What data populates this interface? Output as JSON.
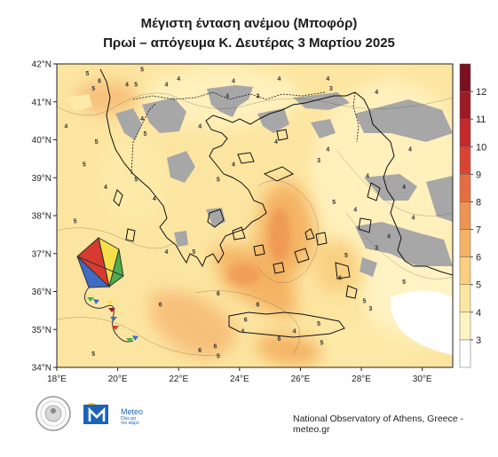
{
  "title": "Μέγιστη ένταση ανέμου (Μποφόρ)",
  "subtitle": "Πρωί – απόγευμα Κ. Δευτέρας 3 Μαρτίου 2025",
  "lat_labels": [
    "42°N",
    "41°N",
    "40°N",
    "39°N",
    "38°N",
    "37°N",
    "36°N",
    "35°N",
    "34°N"
  ],
  "lon_labels": [
    "18°E",
    "20°E",
    "22°E",
    "24°E",
    "26°E",
    "28°E",
    "30°E"
  ],
  "colorbar": {
    "labels": [
      "3",
      "4",
      "5",
      "6",
      "7",
      "8",
      "9",
      "10",
      "11",
      "12"
    ],
    "colors": [
      "#ffffff",
      "#fff3c4",
      "#fce5a0",
      "#f9cf80",
      "#f4b364",
      "#ee9452",
      "#e66d3f",
      "#d94432",
      "#c22a2c",
      "#9e1b26",
      "#7a1020"
    ]
  },
  "contour_labels": [
    {
      "v": "5",
      "lon": 19.0,
      "lat": 41.7
    },
    {
      "v": "5",
      "lon": 20.8,
      "lat": 41.8
    },
    {
      "v": "5",
      "lon": 20.6,
      "lat": 41.4
    },
    {
      "v": "6",
      "lon": 19.4,
      "lat": 41.5
    },
    {
      "v": "5",
      "lon": 19.2,
      "lat": 41.3
    },
    {
      "v": "4",
      "lon": 20.3,
      "lat": 41.4
    },
    {
      "v": "4",
      "lon": 21.6,
      "lat": 41.4
    },
    {
      "v": "4",
      "lon": 22.0,
      "lat": 41.55
    },
    {
      "v": "4",
      "lon": 23.6,
      "lat": 41.1
    },
    {
      "v": "4",
      "lon": 23.8,
      "lat": 41.5
    },
    {
      "v": "4",
      "lon": 25.3,
      "lat": 41.55
    },
    {
      "v": "4",
      "lon": 26.9,
      "lat": 41.55
    },
    {
      "v": "3",
      "lon": 27.0,
      "lat": 41.3
    },
    {
      "v": "3",
      "lon": 24.6,
      "lat": 41.1
    },
    {
      "v": "4",
      "lon": 28.5,
      "lat": 41.2
    },
    {
      "v": "4",
      "lon": 18.3,
      "lat": 40.3
    },
    {
      "v": "5",
      "lon": 19.3,
      "lat": 39.9
    },
    {
      "v": "4",
      "lon": 20.8,
      "lat": 40.5
    },
    {
      "v": "5",
      "lon": 20.9,
      "lat": 40.1
    },
    {
      "v": "4",
      "lon": 22.7,
      "lat": 40.3
    },
    {
      "v": "4",
      "lon": 23.8,
      "lat": 39.3
    },
    {
      "v": "4",
      "lon": 25.2,
      "lat": 39.9
    },
    {
      "v": "3",
      "lon": 26.6,
      "lat": 39.4
    },
    {
      "v": "4",
      "lon": 26.9,
      "lat": 39.7
    },
    {
      "v": "4",
      "lon": 28.2,
      "lat": 39.0
    },
    {
      "v": "4",
      "lon": 29.6,
      "lat": 39.7
    },
    {
      "v": "4",
      "lon": 29.4,
      "lat": 38.7
    },
    {
      "v": "5",
      "lon": 18.9,
      "lat": 39.3
    },
    {
      "v": "5",
      "lon": 20.6,
      "lat": 38.9
    },
    {
      "v": "4",
      "lon": 19.6,
      "lat": 38.7
    },
    {
      "v": "5",
      "lon": 18.6,
      "lat": 37.8
    },
    {
      "v": "4",
      "lon": 21.2,
      "lat": 38.4
    },
    {
      "v": "5",
      "lon": 23.3,
      "lat": 38.9
    },
    {
      "v": "5",
      "lon": 27.1,
      "lat": 38.3
    },
    {
      "v": "4",
      "lon": 27.8,
      "lat": 38.1
    },
    {
      "v": "4",
      "lon": 29.7,
      "lat": 37.9
    },
    {
      "v": "4",
      "lon": 28.9,
      "lat": 37.4
    },
    {
      "v": "3",
      "lon": 28.5,
      "lat": 37.1
    },
    {
      "v": "5",
      "lon": 22.5,
      "lat": 37.0
    },
    {
      "v": "4",
      "lon": 21.6,
      "lat": 37.0
    },
    {
      "v": "5",
      "lon": 27.5,
      "lat": 36.9
    },
    {
      "v": "6",
      "lon": 27.3,
      "lat": 36.3
    },
    {
      "v": "5",
      "lon": 29.4,
      "lat": 36.2
    },
    {
      "v": "5",
      "lon": 28.1,
      "lat": 35.7
    },
    {
      "v": "3",
      "lon": 28.3,
      "lat": 35.5
    },
    {
      "v": "6",
      "lon": 23.3,
      "lat": 35.9
    },
    {
      "v": "6",
      "lon": 21.4,
      "lat": 35.6
    },
    {
      "v": "6",
      "lon": 24.6,
      "lat": 35.6
    },
    {
      "v": "6",
      "lon": 24.2,
      "lat": 35.2
    },
    {
      "v": "4",
      "lon": 25.8,
      "lat": 34.9
    },
    {
      "v": "5",
      "lon": 26.6,
      "lat": 35.1
    },
    {
      "v": "5",
      "lon": 26.7,
      "lat": 34.6
    },
    {
      "v": "6",
      "lon": 25.3,
      "lat": 34.7
    },
    {
      "v": "4",
      "lon": 24.1,
      "lat": 34.9
    },
    {
      "v": "6",
      "lon": 23.2,
      "lat": 34.5
    },
    {
      "v": "6",
      "lon": 22.7,
      "lat": 34.4
    },
    {
      "v": "5",
      "lon": 23.3,
      "lat": 34.25
    },
    {
      "v": "5",
      "lon": 19.2,
      "lat": 34.3
    }
  ],
  "logo": {
    "brand": "Meteo",
    "tagline1": "Όλα για",
    "tagline2": "τον καιρό"
  },
  "credit": "National Observatory of Athens, Greece - meteo.gr"
}
